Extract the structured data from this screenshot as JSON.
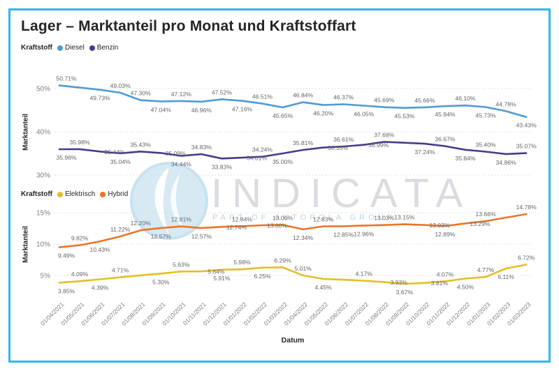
{
  "title": "Lager – Marktanteil pro Monat und Kraftstoffart",
  "frame": {
    "border_color": "#36b5e8",
    "background": "#ffffff"
  },
  "watermark": {
    "text": "INDICATA",
    "subtext": "PART OF AUTOROLA GROUP"
  },
  "x_axis": {
    "title": "Datum",
    "categories": [
      "01/04/2021",
      "01/05/2021",
      "01/06/2021",
      "01/07/2021",
      "01/08/2021",
      "01/09/2021",
      "01/10/2021",
      "01/11/2021",
      "01/12/2021",
      "01/01/2022",
      "01/02/2022",
      "01/03/2022",
      "01/04/2022",
      "01/05/2022",
      "01/06/2022",
      "01/07/2022",
      "01/08/2022",
      "01/09/2022",
      "01/10/2022",
      "01/11/2022",
      "01/12/2022",
      "01/01/2023",
      "01/02/2023",
      "01/03/2023"
    ]
  },
  "chart_data": [
    {
      "type": "line",
      "title": "",
      "y_axis_title": "Marktanteil",
      "ylim": [
        30,
        52
      ],
      "grid": "dotted-horizontal",
      "legend_position": "top-left",
      "y_ticks": [
        {
          "label": "50%",
          "value": 50
        },
        {
          "label": "40%",
          "value": 40
        },
        {
          "label": "30%",
          "value": 30
        }
      ],
      "legend": {
        "title": "Kraftstoff",
        "items": [
          {
            "label": "Diesel",
            "color": "#4e9bd5"
          },
          {
            "label": "Benzin",
            "color": "#463c8c"
          }
        ]
      },
      "categories": [
        "01/04/2021",
        "01/05/2021",
        "01/06/2021",
        "01/07/2021",
        "01/08/2021",
        "01/09/2021",
        "01/10/2021",
        "01/11/2021",
        "01/12/2021",
        "01/01/2022",
        "01/02/2022",
        "01/03/2022",
        "01/04/2022",
        "01/05/2022",
        "01/06/2022",
        "01/07/2022",
        "01/08/2022",
        "01/09/2022",
        "01/10/2022",
        "01/11/2022",
        "01/12/2022",
        "01/01/2023",
        "01/02/2023",
        "01/03/2023"
      ],
      "series": [
        {
          "name": "Diesel",
          "color": "#4e9bd5",
          "values": [
            50.71,
            50.22,
            49.73,
            49.03,
            47.3,
            47.04,
            47.12,
            46.96,
            47.52,
            47.16,
            46.51,
            45.65,
            46.84,
            46.2,
            46.37,
            46.05,
            45.69,
            45.53,
            45.66,
            45.94,
            46.1,
            45.73,
            44.78,
            43.43
          ],
          "labels": [
            "50.71%",
            null,
            "49.73%",
            "49.03%",
            "47.30%",
            "47.04%",
            "47.12%",
            "46.96%",
            "47.52%",
            "47.16%",
            "46.51%",
            "45.65%",
            "46.84%",
            "46.20%",
            "46.37%",
            "46.05%",
            "45.69%",
            "45.53%",
            "45.66%",
            "45.94%",
            "46.10%",
            "45.73%",
            "44.78%",
            "43.43%"
          ],
          "label_pos": [
            "A",
            null,
            "B",
            "A",
            "A",
            "B",
            "A",
            "B",
            "A",
            "B",
            "A",
            "B",
            "A",
            "B",
            "A",
            "B",
            "A",
            "B",
            "A",
            "B",
            "A",
            "B",
            "A",
            "B"
          ]
        },
        {
          "name": "Benzin",
          "color": "#463c8c",
          "values": [
            35.96,
            35.98,
            35.44,
            35.04,
            35.43,
            35.09,
            34.44,
            34.83,
            33.83,
            34.01,
            34.24,
            35.0,
            35.81,
            36.35,
            36.61,
            36.99,
            37.68,
            37.46,
            37.24,
            36.67,
            35.84,
            35.4,
            34.86,
            35.07
          ],
          "labels": [
            "35.96%",
            "35.98%",
            "35.44%",
            "35.04%",
            "35.43%",
            "35.09%",
            "34.44%",
            "34.83%",
            "33.83%",
            "34.01%",
            "34.24%",
            "35.00%",
            "35.81%",
            "36.35%",
            "36.61%",
            "36.99%",
            "37.68%",
            null,
            "37.24%",
            "36.67%",
            "35.84%",
            "35.40%",
            "34.86%",
            "35.07%"
          ],
          "label_pos": [
            "B",
            "A",
            "L",
            "B",
            "A",
            "L",
            "B",
            "A",
            "B",
            "L",
            "A",
            "B",
            "A",
            "L",
            "A",
            "L",
            "A",
            null,
            "B",
            "A",
            "B",
            "A",
            "B",
            "A"
          ]
        }
      ]
    },
    {
      "type": "line",
      "title": "",
      "y_axis_title": "Marktanteil",
      "ylim": [
        3,
        15.5
      ],
      "grid": "dotted-horizontal",
      "legend_position": "top-left",
      "y_ticks": [
        {
          "label": "15%",
          "value": 15
        },
        {
          "label": "10%",
          "value": 10
        },
        {
          "label": "5%",
          "value": 5
        }
      ],
      "legend": {
        "title": "Kraftstoff",
        "items": [
          {
            "label": "Elektrisch",
            "color": "#e5be27"
          },
          {
            "label": "Hybrid",
            "color": "#ee7425"
          }
        ]
      },
      "categories": [
        "01/04/2021",
        "01/05/2021",
        "01/06/2021",
        "01/07/2021",
        "01/08/2021",
        "01/09/2021",
        "01/10/2021",
        "01/11/2021",
        "01/12/2021",
        "01/01/2022",
        "01/02/2022",
        "01/03/2022",
        "01/04/2022",
        "01/05/2022",
        "01/06/2022",
        "01/07/2022",
        "01/08/2022",
        "01/09/2022",
        "01/10/2022",
        "01/11/2022",
        "01/12/2022",
        "01/01/2023",
        "01/02/2023",
        "01/03/2023"
      ],
      "series": [
        {
          "name": "Elektrisch",
          "color": "#e5be27",
          "values": [
            3.85,
            4.09,
            4.39,
            4.71,
            5.02,
            5.3,
            5.63,
            5.64,
            5.91,
            5.98,
            6.25,
            6.29,
            5.01,
            4.45,
            4.31,
            4.17,
            3.93,
            3.67,
            3.81,
            4.07,
            4.5,
            4.77,
            6.11,
            6.72
          ],
          "labels": [
            "3.85%",
            "4.09%",
            "4.39%",
            "4.71%",
            null,
            "5.30%",
            "5.63%",
            "5.64%",
            "5.91%",
            "5.98%",
            "6.25%",
            "6.29%",
            "5.01%",
            "4.45%",
            null,
            "4.17%",
            "3.93%",
            "3.67%",
            "3.81%",
            "4.07%",
            "4.50%",
            "4.77%",
            "6.11%",
            "6.72%"
          ],
          "label_pos": [
            "B",
            "A",
            "B",
            "A",
            null,
            "B",
            "A",
            "L",
            "B",
            "A",
            "B",
            "A",
            "A",
            "B",
            null,
            "A",
            "L",
            "B",
            "L",
            "A",
            "B",
            "A",
            "B",
            "A"
          ]
        },
        {
          "name": "Hybrid",
          "color": "#ee7425",
          "values": [
            9.49,
            9.82,
            10.43,
            11.22,
            12.2,
            12.57,
            12.81,
            12.57,
            12.74,
            12.84,
            13.0,
            13.06,
            12.34,
            12.83,
            12.85,
            12.96,
            13.03,
            13.15,
            13.03,
            12.89,
            13.29,
            13.66,
            14.22,
            14.78
          ],
          "labels": [
            "9.49%",
            "9.82%",
            "10.43%",
            "11.22%",
            "12.20%",
            "12.57%",
            "12.81%",
            "12.57%",
            "12.74%",
            "12.84%",
            "13.00%",
            "13.06%",
            "12.34%",
            "12.83%",
            "12.85%",
            "12.96%",
            "13.03%",
            "13.15%",
            "13.03%",
            "12.89%",
            "13.29%",
            "13.66%",
            null,
            "14.78%"
          ],
          "label_pos": [
            "B",
            "A",
            "B",
            "A",
            "A",
            "B",
            "A",
            "B",
            "L",
            "A",
            "L",
            "A",
            "B",
            "A",
            "B",
            "B",
            "A",
            "A",
            "L",
            "B",
            "L",
            "A",
            null,
            "A"
          ]
        }
      ]
    }
  ]
}
